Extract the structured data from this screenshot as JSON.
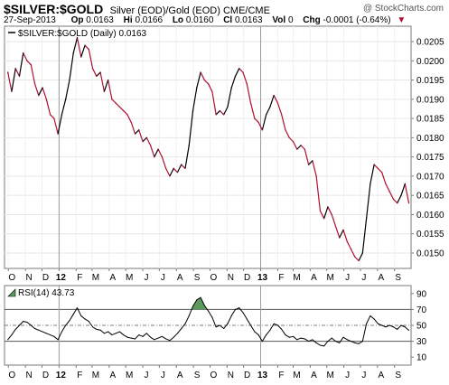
{
  "header": {
    "symbol": "$SILVER:$GOLD",
    "description": "Silver (EOD)/Gold (EOD)",
    "exchange": "CME/CME",
    "watermark": "@ StockCharts.com",
    "date": "27-Sep-2013",
    "open_label": "Op",
    "open": "0.0163",
    "high_label": "Hi",
    "high": "0.0166",
    "low_label": "Lo",
    "low": "0.0160",
    "close_label": "Cl",
    "close": "0.0163",
    "volume_label": "Vol",
    "volume": "0",
    "change_label": "Chg",
    "change": "-0.0001 (-0.64%)",
    "change_arrow": "▼"
  },
  "chart_data": [
    {
      "type": "line",
      "legend": "$SILVER:$GOLD (Daily) 0.0163",
      "y_axis_side": "right",
      "ylim": [
        0.0146,
        0.0209
      ],
      "y_ticks": [
        "0.0205",
        "0.0200",
        "0.0195",
        "0.0190",
        "0.0185",
        "0.0180",
        "0.0175",
        "0.0170",
        "0.0165",
        "0.0160",
        "0.0155",
        "0.0150"
      ],
      "x_labels": [
        "O",
        "N",
        "D",
        "12",
        "F",
        "M",
        "A",
        "M",
        "J",
        "J",
        "A",
        "S",
        "O",
        "N",
        "D",
        "13",
        "F",
        "M",
        "A",
        "M",
        "J",
        "J",
        "A",
        "S"
      ],
      "x_bold": [
        "12",
        "13"
      ],
      "grid": true,
      "colors": {
        "up": "#000000",
        "down": "#b01030"
      },
      "series": [
        {
          "x": [
            "2011-09-30",
            "2011-10-07",
            "2011-10-14",
            "2011-10-21",
            "2011-10-28",
            "2011-11-04",
            "2011-11-11",
            "2011-11-18",
            "2011-11-25",
            "2011-12-02",
            "2011-12-09",
            "2011-12-16",
            "2011-12-23",
            "2011-12-30",
            "2012-01-06",
            "2012-01-13",
            "2012-01-20",
            "2012-01-27",
            "2012-02-03",
            "2012-02-10",
            "2012-02-17",
            "2012-02-24",
            "2012-03-02",
            "2012-03-09",
            "2012-03-16",
            "2012-03-23",
            "2012-03-30",
            "2012-04-06",
            "2012-04-13",
            "2012-04-20",
            "2012-04-27",
            "2012-05-04",
            "2012-05-11",
            "2012-05-18",
            "2012-05-25",
            "2012-06-01",
            "2012-06-08",
            "2012-06-15",
            "2012-06-22",
            "2012-06-29",
            "2012-07-06",
            "2012-07-13",
            "2012-07-20",
            "2012-07-27",
            "2012-08-03",
            "2012-08-10",
            "2012-08-17",
            "2012-08-24",
            "2012-08-31",
            "2012-09-07",
            "2012-09-14",
            "2012-09-21",
            "2012-09-28",
            "2012-10-05",
            "2012-10-12",
            "2012-10-19",
            "2012-10-26",
            "2012-11-02",
            "2012-11-09",
            "2012-11-16",
            "2012-11-23",
            "2012-11-30",
            "2012-12-07",
            "2012-12-14",
            "2012-12-21",
            "2012-12-28",
            "2013-01-04",
            "2013-01-11",
            "2013-01-18",
            "2013-01-25",
            "2013-02-01",
            "2013-02-08",
            "2013-02-15",
            "2013-02-22",
            "2013-03-01",
            "2013-03-08",
            "2013-03-15",
            "2013-03-22",
            "2013-03-29",
            "2013-04-05",
            "2013-04-12",
            "2013-04-19",
            "2013-04-26",
            "2013-05-03",
            "2013-05-10",
            "2013-05-17",
            "2013-05-24",
            "2013-05-31",
            "2013-06-07",
            "2013-06-14",
            "2013-06-21",
            "2013-06-28",
            "2013-07-05",
            "2013-07-12",
            "2013-07-19",
            "2013-07-26",
            "2013-08-02",
            "2013-08-09",
            "2013-08-16",
            "2013-08-23",
            "2013-08-30",
            "2013-09-06",
            "2013-09-13",
            "2013-09-20",
            "2013-09-27"
          ],
          "values": [
            0.0197,
            0.0192,
            0.0198,
            0.0196,
            0.0202,
            0.02,
            0.0199,
            0.0194,
            0.0191,
            0.0193,
            0.019,
            0.0186,
            0.0185,
            0.0181,
            0.0186,
            0.019,
            0.0195,
            0.0202,
            0.0206,
            0.0201,
            0.0204,
            0.0203,
            0.0198,
            0.0196,
            0.0197,
            0.0192,
            0.0195,
            0.019,
            0.0189,
            0.0188,
            0.0187,
            0.0186,
            0.0184,
            0.0181,
            0.0182,
            0.0179,
            0.018,
            0.0178,
            0.0175,
            0.0177,
            0.0175,
            0.0172,
            0.017,
            0.0172,
            0.0171,
            0.0173,
            0.0172,
            0.0178,
            0.0187,
            0.0193,
            0.0197,
            0.0195,
            0.0194,
            0.0192,
            0.0186,
            0.0187,
            0.0186,
            0.0188,
            0.0193,
            0.0196,
            0.0198,
            0.0197,
            0.0194,
            0.0189,
            0.0185,
            0.0184,
            0.0182,
            0.0186,
            0.0188,
            0.0191,
            0.0189,
            0.0186,
            0.0182,
            0.018,
            0.0179,
            0.0177,
            0.0178,
            0.0177,
            0.0173,
            0.0174,
            0.017,
            0.0161,
            0.0159,
            0.0162,
            0.016,
            0.0157,
            0.0154,
            0.0156,
            0.0153,
            0.0151,
            0.0149,
            0.0148,
            0.015,
            0.0159,
            0.0168,
            0.0173,
            0.0172,
            0.0171,
            0.0168,
            0.0166,
            0.0164,
            0.0163,
            0.0165,
            0.0168,
            0.0163
          ]
        }
      ]
    },
    {
      "type": "area",
      "legend": "RSI(14) 43.73",
      "y_axis_side": "right",
      "ylim": [
        0,
        100
      ],
      "y_ticks": [
        "90",
        "70",
        "50",
        "30",
        "10"
      ],
      "reference_lines": [
        70,
        30
      ],
      "center_line": 50,
      "x_labels": [
        "O",
        "N",
        "D",
        "12",
        "F",
        "M",
        "A",
        "M",
        "J",
        "J",
        "A",
        "S",
        "O",
        "N",
        "D",
        "13",
        "F",
        "M",
        "A",
        "M",
        "J",
        "J",
        "A",
        "S"
      ],
      "x_bold": [
        "12",
        "13"
      ],
      "colors": {
        "line": "#000000",
        "overbought_fill": "#5b9a5b"
      },
      "series": [
        {
          "x": [
            "2011-09-30",
            "2011-10-07",
            "2011-10-14",
            "2011-10-21",
            "2011-10-28",
            "2011-11-04",
            "2011-11-11",
            "2011-11-18",
            "2011-11-25",
            "2011-12-02",
            "2011-12-09",
            "2011-12-16",
            "2011-12-23",
            "2011-12-30",
            "2012-01-06",
            "2012-01-13",
            "2012-01-20",
            "2012-01-27",
            "2012-02-03",
            "2012-02-10",
            "2012-02-17",
            "2012-02-24",
            "2012-03-02",
            "2012-03-09",
            "2012-03-16",
            "2012-03-23",
            "2012-03-30",
            "2012-04-06",
            "2012-04-13",
            "2012-04-20",
            "2012-04-27",
            "2012-05-04",
            "2012-05-11",
            "2012-05-18",
            "2012-05-25",
            "2012-06-01",
            "2012-06-08",
            "2012-06-15",
            "2012-06-22",
            "2012-06-29",
            "2012-07-06",
            "2012-07-13",
            "2012-07-20",
            "2012-07-27",
            "2012-08-03",
            "2012-08-10",
            "2012-08-17",
            "2012-08-24",
            "2012-08-31",
            "2012-09-07",
            "2012-09-14",
            "2012-09-21",
            "2012-09-28",
            "2012-10-05",
            "2012-10-12",
            "2012-10-19",
            "2012-10-26",
            "2012-11-02",
            "2012-11-09",
            "2012-11-16",
            "2012-11-23",
            "2012-11-30",
            "2012-12-07",
            "2012-12-14",
            "2012-12-21",
            "2012-12-28",
            "2013-01-04",
            "2013-01-11",
            "2013-01-18",
            "2013-01-25",
            "2013-02-01",
            "2013-02-08",
            "2013-02-15",
            "2013-02-22",
            "2013-03-01",
            "2013-03-08",
            "2013-03-15",
            "2013-03-22",
            "2013-03-29",
            "2013-04-05",
            "2013-04-12",
            "2013-04-19",
            "2013-04-26",
            "2013-05-03",
            "2013-05-10",
            "2013-05-17",
            "2013-05-24",
            "2013-05-31",
            "2013-06-07",
            "2013-06-14",
            "2013-06-21",
            "2013-06-28",
            "2013-07-05",
            "2013-07-12",
            "2013-07-19",
            "2013-07-26",
            "2013-08-02",
            "2013-08-09",
            "2013-08-16",
            "2013-08-23",
            "2013-08-30",
            "2013-09-06",
            "2013-09-13",
            "2013-09-20",
            "2013-09-27"
          ],
          "values": [
            32,
            38,
            45,
            50,
            55,
            54,
            50,
            46,
            44,
            42,
            40,
            38,
            36,
            32,
            42,
            50,
            56,
            64,
            72,
            62,
            58,
            55,
            48,
            45,
            44,
            40,
            42,
            38,
            40,
            42,
            38,
            35,
            34,
            33,
            38,
            36,
            40,
            35,
            32,
            34,
            36,
            33,
            31,
            35,
            40,
            46,
            52,
            62,
            74,
            82,
            85,
            75,
            68,
            60,
            48,
            50,
            46,
            52,
            62,
            70,
            72,
            66,
            58,
            50,
            42,
            38,
            30,
            38,
            44,
            52,
            50,
            45,
            38,
            35,
            36,
            32,
            34,
            33,
            30,
            32,
            28,
            25,
            24,
            30,
            34,
            30,
            28,
            35,
            32,
            30,
            28,
            27,
            30,
            52,
            62,
            58,
            52,
            50,
            48,
            50,
            48,
            45,
            50,
            48,
            43.73
          ]
        }
      ]
    }
  ]
}
